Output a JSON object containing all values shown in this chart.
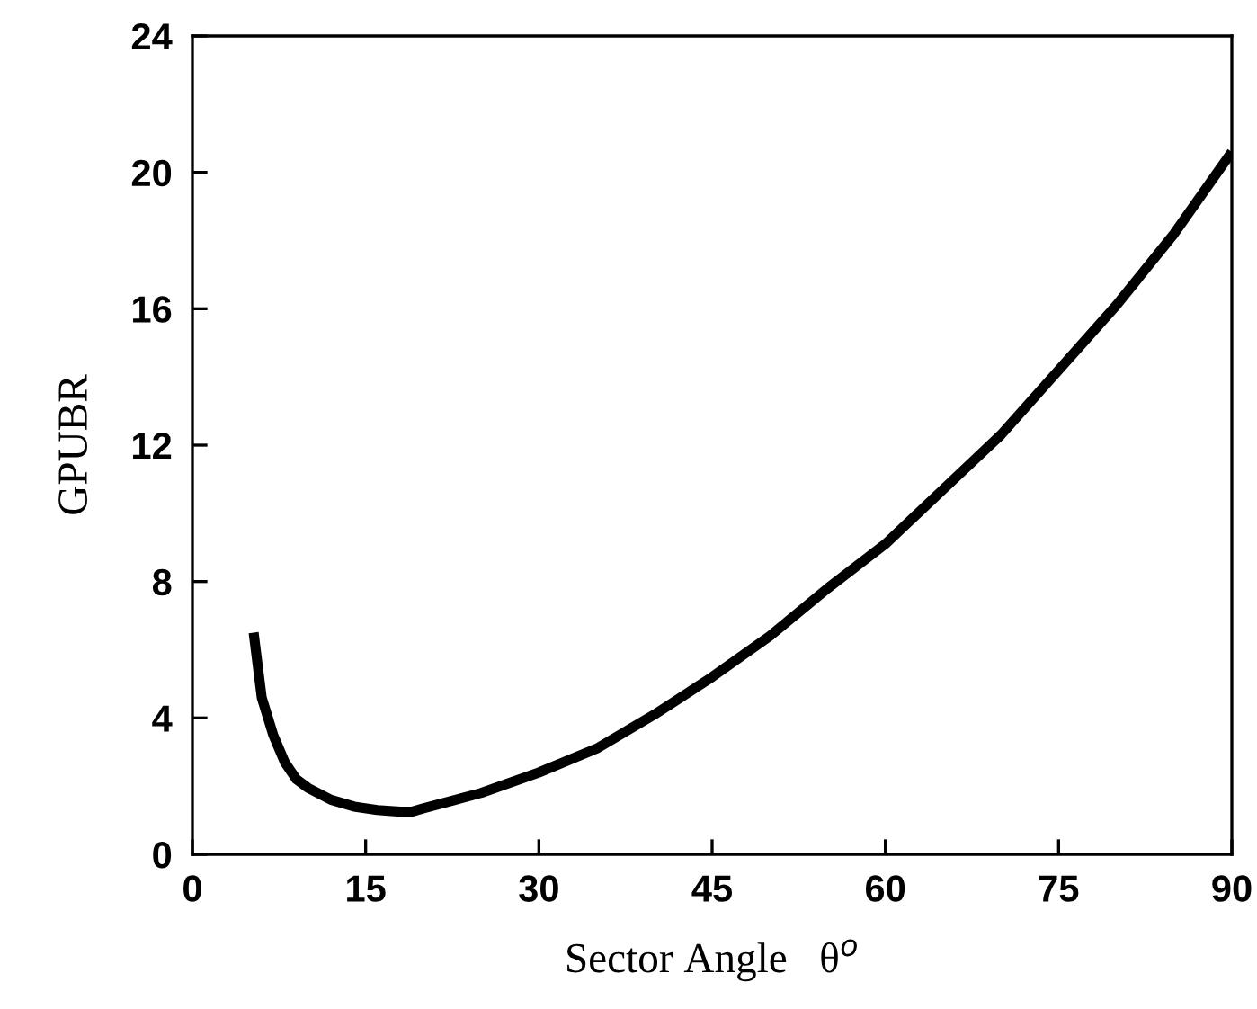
{
  "chart_data": {
    "type": "line",
    "xlabel": "Sector Angle   θ$^{o}$",
    "ylabel": "GPUBR",
    "x": [
      5.3,
      6,
      7,
      8,
      9,
      10,
      12,
      14,
      16,
      18,
      19,
      20,
      25,
      30,
      35,
      40,
      45,
      50,
      55,
      60,
      65,
      70,
      75,
      80,
      85,
      90
    ],
    "series": [
      {
        "color": "#000000",
        "values": [
          6.5,
          4.6,
          3.5,
          2.7,
          2.2,
          1.95,
          1.6,
          1.4,
          1.3,
          1.25,
          1.25,
          1.35,
          1.8,
          2.4,
          3.1,
          4.1,
          5.2,
          6.4,
          7.8,
          9.1,
          10.7,
          12.3,
          14.2,
          16.1,
          18.2,
          20.6
        ]
      }
    ],
    "xlim": [
      0,
      90
    ],
    "xticks": [
      0,
      15,
      30,
      45,
      60,
      75,
      90
    ],
    "ylim": [
      0,
      24
    ],
    "yticks": [
      0,
      4,
      8,
      12,
      16,
      20,
      24
    ],
    "grid": false,
    "legend": false,
    "marker": "none",
    "line_style": "solid"
  }
}
